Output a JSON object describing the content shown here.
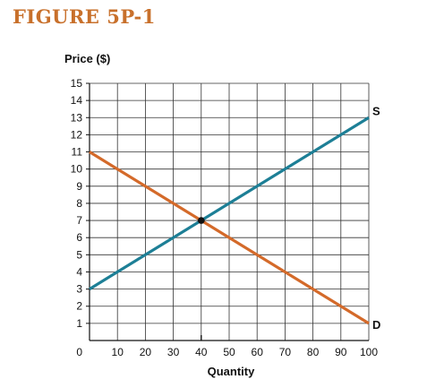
{
  "figure_title": "FIGURE 5P-1",
  "chart_data": {
    "type": "line",
    "title": "",
    "xlabel": "Quantity",
    "ylabel": "Price ($)",
    "xlim": [
      0,
      100
    ],
    "ylim": [
      0,
      15
    ],
    "x_ticks": [
      "0",
      "10",
      "20",
      "30",
      "40",
      "50",
      "60",
      "70",
      "80",
      "90",
      "100"
    ],
    "y_ticks": [
      "1",
      "2",
      "3",
      "4",
      "5",
      "6",
      "7",
      "8",
      "9",
      "10",
      "11",
      "12",
      "13",
      "14",
      "15"
    ],
    "grid": true,
    "series": [
      {
        "name": "S",
        "color": "#1d7f96",
        "points": [
          [
            0,
            3
          ],
          [
            100,
            13
          ]
        ]
      },
      {
        "name": "D",
        "color": "#d46a2a",
        "points": [
          [
            0,
            11
          ],
          [
            100,
            1
          ]
        ]
      }
    ],
    "equilibrium": {
      "x": 40,
      "y": 7
    }
  }
}
